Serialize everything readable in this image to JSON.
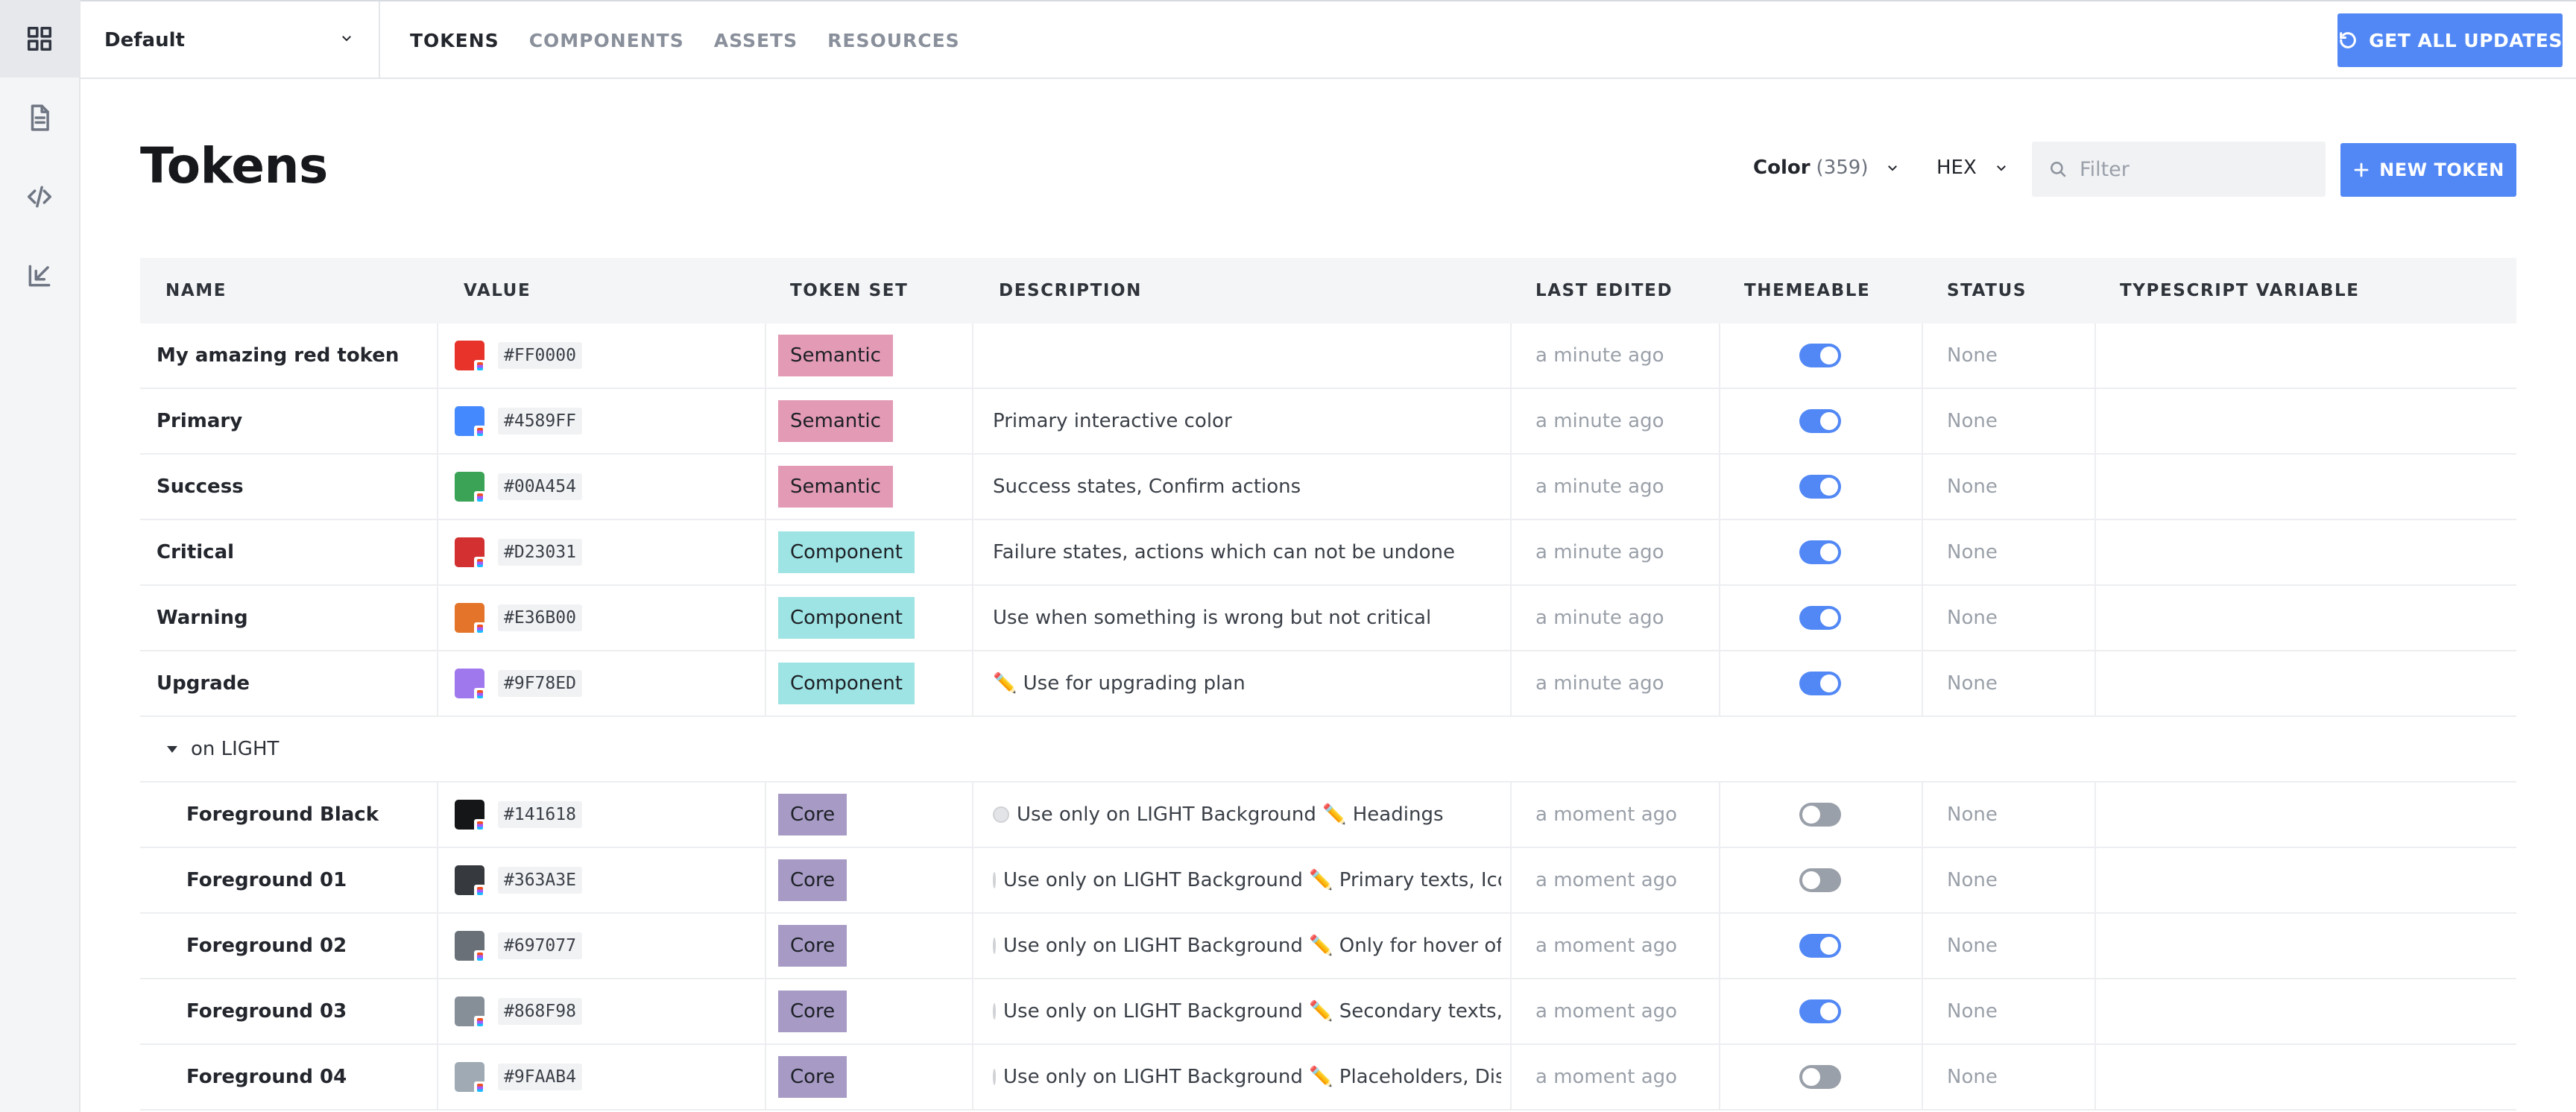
{
  "sidebar": {
    "items": [
      {
        "icon": "grid-icon"
      },
      {
        "icon": "document-icon"
      },
      {
        "icon": "code-icon"
      },
      {
        "icon": "import-icon"
      }
    ]
  },
  "topbar": {
    "theme": "Default",
    "tabs": [
      "TOKENS",
      "COMPONENTS",
      "ASSETS",
      "RESOURCES"
    ],
    "active_tab": "TOKENS",
    "updates_label": "GET ALL UPDATES"
  },
  "header": {
    "title": "Tokens",
    "type_label": "Color",
    "type_count": "(359)",
    "format_label": "HEX",
    "filter_placeholder": "Filter",
    "new_label": "NEW TOKEN"
  },
  "columns": [
    "NAME",
    "VALUE",
    "TOKEN SET",
    "DESCRIPTION",
    "LAST EDITED",
    "THEMEABLE",
    "STATUS",
    "TYPESCRIPT VARIABLE"
  ],
  "tag_colors": {
    "Semantic": "#e39ab4",
    "Component": "#9ee4e4",
    "Core": "#a79bc6"
  },
  "rows": [
    {
      "name": "My amazing red token",
      "hex": "#FF0000",
      "swatch": "#e8332a",
      "set": "Semantic",
      "description": "",
      "edited": "a minute ago",
      "themeable": true,
      "status": "None"
    },
    {
      "name": "Primary",
      "hex": "#4589FF",
      "swatch": "#4589ff",
      "set": "Semantic",
      "description": "Primary interactive color",
      "edited": "a minute ago",
      "themeable": true,
      "status": "None"
    },
    {
      "name": "Success",
      "hex": "#00A454",
      "swatch": "#3aa356",
      "set": "Semantic",
      "description": "Success states, Confirm actions",
      "edited": "a minute ago",
      "themeable": true,
      "status": "None"
    },
    {
      "name": "Critical",
      "hex": "#D23031",
      "swatch": "#d23031",
      "set": "Component",
      "description": "Failure states, actions which can not be undone",
      "edited": "a minute ago",
      "themeable": true,
      "status": "None"
    },
    {
      "name": "Warning",
      "hex": "#E36B00",
      "swatch": "#e3742a",
      "set": "Component",
      "description": "Use when something is wrong but not critical",
      "edited": "a minute ago",
      "themeable": true,
      "status": "None"
    },
    {
      "name": "Upgrade",
      "hex": "#9F78ED",
      "swatch": "#9f78ed",
      "set": "Component",
      "description": "✏️ Use for upgrading plan",
      "edited": "a minute ago",
      "themeable": true,
      "status": "None"
    }
  ],
  "group": {
    "label": "on LIGHT",
    "rows": [
      {
        "name": "Foreground Black",
        "hex": "#141618",
        "swatch": "#141618",
        "set": "Core",
        "description": "Use only on LIGHT Background  ✏️ Headings",
        "edited": "a moment ago",
        "themeable": false,
        "status": "None"
      },
      {
        "name": "Foreground 01",
        "hex": "#363A3E",
        "swatch": "#363a3e",
        "set": "Core",
        "description": "Use only on LIGHT Background  ✏️ Primary texts, Icon",
        "edited": "a moment ago",
        "themeable": false,
        "status": "None"
      },
      {
        "name": "Foreground 02",
        "hex": "#697077",
        "swatch": "#697077",
        "set": "Core",
        "description": "Use only on LIGHT Background  ✏️ Only for hover of F",
        "edited": "a moment ago",
        "themeable": true,
        "status": "None"
      },
      {
        "name": "Foreground 03",
        "hex": "#868F98",
        "swatch": "#868f98",
        "set": "Core",
        "description": "Use only on LIGHT Background  ✏️ Secondary texts, Ic",
        "edited": "a moment ago",
        "themeable": true,
        "status": "None"
      },
      {
        "name": "Foreground 04",
        "hex": "#9FAAB4",
        "swatch": "#9faab4",
        "set": "Core",
        "description": "Use only on LIGHT Background  ✏️ Placeholders, Disa",
        "edited": "a moment ago",
        "themeable": false,
        "status": "None"
      }
    ]
  }
}
